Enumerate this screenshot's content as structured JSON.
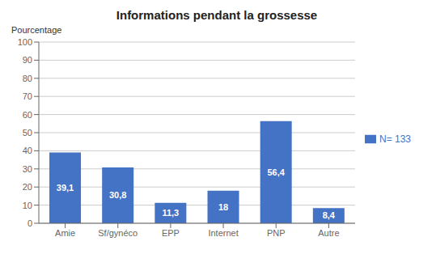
{
  "chart_data": {
    "type": "bar",
    "title": "Informations pendant la grossesse",
    "ylabel": "Pourcentage",
    "categories": [
      "Amie",
      "Sf/gynéco",
      "EPP",
      "Internet",
      "PNP",
      "Autre"
    ],
    "series": [
      {
        "name": "N= 133",
        "color": "#4472C4",
        "values": [
          39.1,
          30.8,
          11.3,
          18,
          56.4,
          8.4
        ],
        "value_labels": [
          "39,1",
          "30,8",
          "11,3",
          "18",
          "56,4",
          "8,4"
        ]
      }
    ],
    "ylim": [
      0,
      100
    ],
    "yticks": [
      0,
      10,
      20,
      30,
      40,
      50,
      60,
      70,
      80,
      90,
      100
    ],
    "grid": true,
    "legend": "right",
    "data_labels": true
  }
}
